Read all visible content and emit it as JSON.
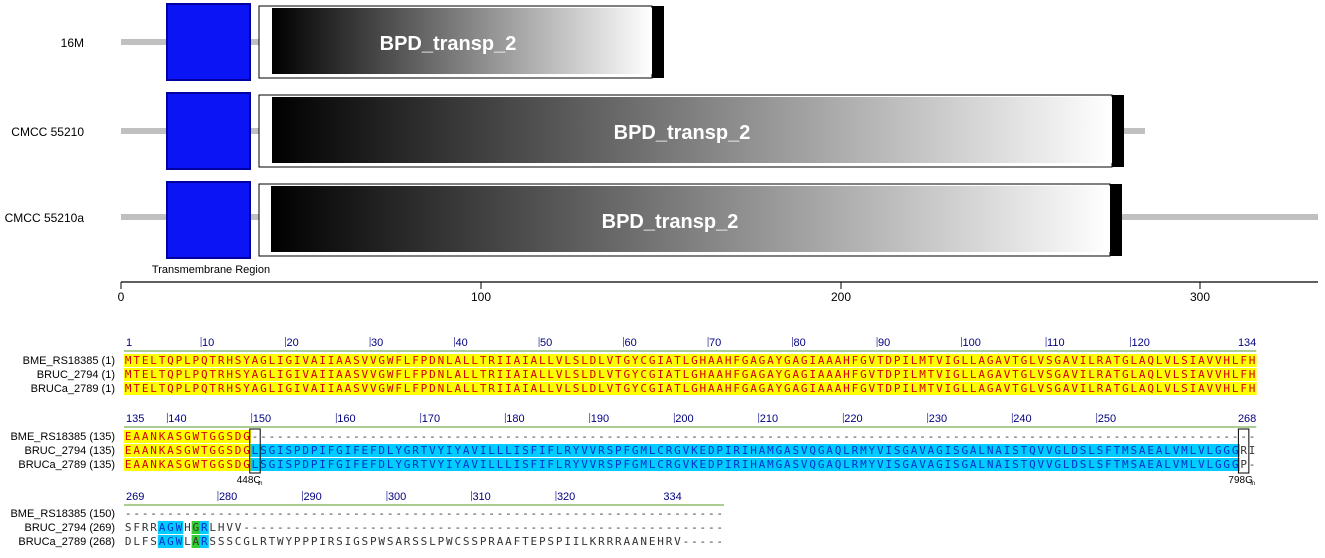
{
  "domain_figure": {
    "tracks": [
      {
        "name": "16M",
        "domain_label": "BPD_transp_2"
      },
      {
        "name": "CMCC  55210",
        "domain_label": "BPD_transp_2"
      },
      {
        "name": "CMCC  55210a",
        "domain_label": "BPD_transp_2"
      }
    ],
    "tm_label": "Transmembrane Region",
    "axis_ticks": [
      "0",
      "100",
      "200",
      "300"
    ],
    "colors": {
      "tm_box": "#0a14f5",
      "tm_border": "#0000a0",
      "backbone": "#c0c0c0",
      "gradient_start": "#000000",
      "gradient_end": "#ffffff"
    }
  },
  "alignment": {
    "blocks": [
      {
        "ruler": [
          "1",
          "10",
          "20",
          "30",
          "40",
          "50",
          "60",
          "70",
          "80",
          "90",
          "100",
          "110",
          "120",
          "134"
        ],
        "rows": [
          {
            "label": "BME_RS18385 (1)",
            "seq": "MTELTQPLPQTRHSYAGLIGIVAIIAASVVGWFLFPDNLALLTRIIAIALLVLSLDLVTGYCGIATLGHAAHFGAGAYGAGIAAAHFGVTDPILMTVIGLLAGAVTGLVSGAVILRATGLAQLVLSIAVVHLFH"
          },
          {
            "label": "BRUC_2794 (1)",
            "seq": "MTELTQPLPQTRHSYAGLIGIVAIIAASVVGWFLFPDNLALLTRIIAIALLVLSLDLVTGYCGIATLGHAAHFGAGAYGAGIAAAHFGVTDPILMTVIGLLAGAVTGLVSGAVILRATGLAQLVLSIAVVHLFH"
          },
          {
            "label": "BRUCa_2789 (1)",
            "seq": "MTELTQPLPQTRHSYAGLIGIVAIIAASVVGWFLFPDNLALLTRIIAIALLVLSLDLVTGYCGIATLGHAAHFGAGAYGAGIAAAHFGVTDPILMTVIGLLAGAVTGLVSGAVILRATGLAQLVLSIAVVHLFH"
          }
        ]
      },
      {
        "ruler": [
          "135",
          "140",
          "150",
          "160",
          "170",
          "180",
          "190",
          "200",
          "210",
          "220",
          "230",
          "240",
          "250",
          "268"
        ],
        "rows": [
          {
            "label": "BME_RS18385 (135)",
            "seq": "EAANKASGWTGGSDG-"
          },
          {
            "label": "BRUC_2794 (135)",
            "seq": "EAANKASGWTGGSDGLSGISPDPIFGIFEFDLYGRTVYIYAVILLLISFIFLRYVVRSPFGMLCRGVKEDPIRIHAMGASVQGAQLRMYVISGAVAGISGALNAISTQVVGLDSLSFTMSAEALVMLVLGGGRI"
          },
          {
            "label": "BRUCa_2789 (135)",
            "seq": "EAANKASGWTGGSDGLSGISPDPIFGIFEFDLYGRTVYIYAVILLLISFIFLRYVVRSPFGMLCRGVKEDPIRIHAMGASVQGAQLRMYVISGAVAGISGALNAISTQVVGLDSLSFTMSAEALVMLVLGGGP-"
          }
        ],
        "annotations": [
          "448C",
          "in",
          "798G",
          "in"
        ]
      },
      {
        "ruler": [
          "269",
          "280",
          "290",
          "300",
          "310",
          "320",
          "334"
        ],
        "rows": [
          {
            "label": "BME_RS18385 (150)",
            "seq": ""
          },
          {
            "label": "BRUC_2794 (269)",
            "seq": "SFRRAGWHGRLHVV"
          },
          {
            "label": "BRUCa_2789 (268)",
            "seq": "DLFSAGWLARSSSCGLRTWYPPPIRSIGSPWSARSSLPWCSSPRAAFTEPSPIILKRRRAANEHRV"
          }
        ]
      }
    ],
    "colors": {
      "identical_bg": "#ffff00",
      "identical_fg": "#d40000",
      "similar_bg": "#00ccff",
      "similar_fg": "#0033cc",
      "green_bg": "#33cc33",
      "plain_fg": "#333333",
      "ruler_fg": "#000080",
      "ruler_line": "#8fbc6f"
    }
  }
}
